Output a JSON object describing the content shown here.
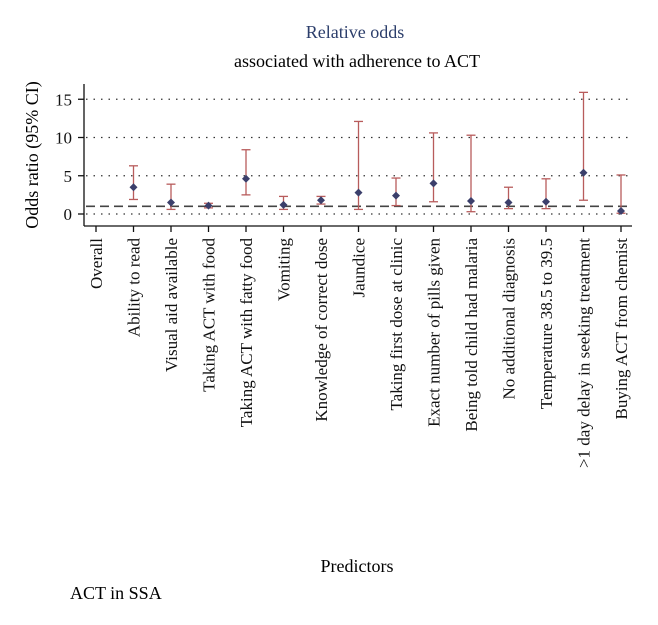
{
  "chart_data": {
    "type": "scatter",
    "title": "Relative odds",
    "subtitle": "associated with adherence to ACT",
    "xlabel": "Predictors",
    "ylabel": "Odds ratio (95% CI)",
    "footer": "ACT in SSA",
    "ylim": [
      -1.5,
      17
    ],
    "yticks": [
      0,
      5,
      10,
      15
    ],
    "reference_line": 1,
    "grid": "dotted horizontal",
    "categories": [
      "Overall",
      "Ability to read",
      "Visual aid available",
      "Taking ACT with food",
      "Taking ACT with fatty food",
      "Vomiting",
      "Knowledge of correct dose",
      "Jaundice",
      "Taking first dose at clinic",
      "Exact number of pills given",
      "Being told child had malaria",
      "No additional diagnosis",
      "Temperature 38.5 to 39.5",
      ">1 day delay in seeking treatment",
      "Buying ACT from chemist"
    ],
    "series": [
      {
        "name": "Odds ratio",
        "point": [
          null,
          3.5,
          1.5,
          1.1,
          4.6,
          1.2,
          1.8,
          2.8,
          2.4,
          4.0,
          1.7,
          1.5,
          1.6,
          5.4,
          0.4
        ],
        "lower": [
          null,
          1.9,
          0.6,
          0.8,
          2.5,
          0.6,
          1.3,
          0.6,
          1.1,
          1.6,
          0.3,
          0.7,
          0.7,
          1.8,
          0.1
        ],
        "upper": [
          null,
          6.3,
          3.9,
          1.4,
          8.4,
          2.3,
          2.3,
          12.1,
          4.7,
          10.6,
          10.3,
          3.5,
          4.6,
          15.9,
          5.1
        ]
      }
    ],
    "colors": {
      "point": "#3b3f6b",
      "ci": "#b85c5c",
      "title": "#2c3e6b",
      "reference": "#444444"
    }
  }
}
